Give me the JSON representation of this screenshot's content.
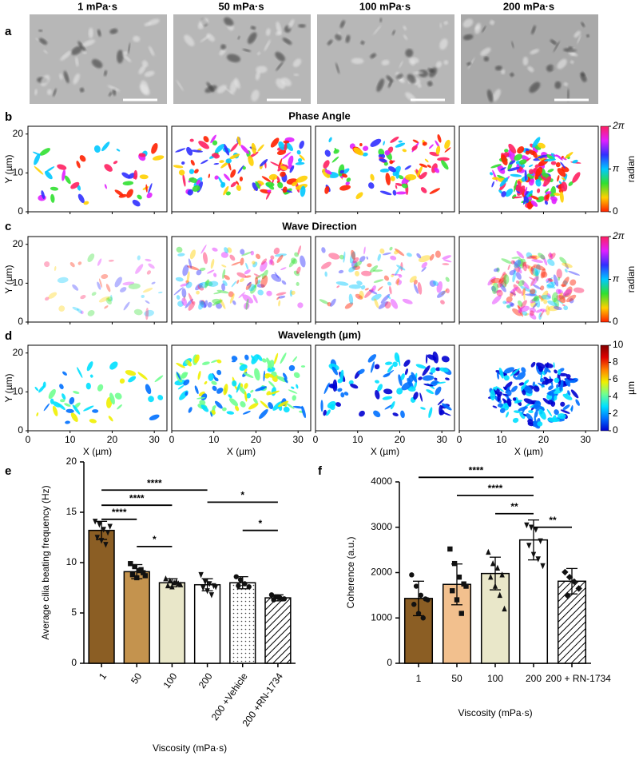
{
  "figure": {
    "column_titles": [
      "1 mPa·s",
      "50 mPa·s",
      "100 mPa·s",
      "200 mPa·s"
    ],
    "panel_labels": [
      "a",
      "b",
      "c",
      "d",
      "e",
      "f"
    ],
    "map_axes": {
      "xlabel": "X (µm)",
      "ylabel": "Y (µm)",
      "xlim": [
        0,
        33
      ],
      "ylim": [
        0,
        22
      ],
      "xticks": [
        0,
        10,
        20,
        30
      ],
      "yticks": [
        0,
        10,
        20
      ]
    },
    "maps": [
      {
        "title": "Phase Angle",
        "colorbar": {
          "lim": [
            0,
            6.2832
          ],
          "ticks": [
            0,
            {
              "value": 3.1416,
              "label": "π"
            },
            {
              "value": 6.2832,
              "label": "2π"
            }
          ],
          "label": "radian",
          "colors": [
            "#ff2000",
            "#ffd000",
            "#30e030",
            "#00c8ff",
            "#3030ff",
            "#e020ff",
            "#ff2060"
          ]
        }
      },
      {
        "title": "Wave Direction",
        "colorbar": {
          "lim": [
            0,
            6.2832
          ],
          "ticks": [
            0,
            {
              "value": 3.1416,
              "label": "π"
            },
            {
              "value": 6.2832,
              "label": "2π"
            }
          ],
          "label": "radian",
          "colors": [
            "#ff2000",
            "#ffd000",
            "#30e030",
            "#00c8ff",
            "#3030ff",
            "#e020ff",
            "#ff2060"
          ]
        }
      },
      {
        "title": "Wavelength (µm)",
        "colorbar": {
          "lim": [
            0,
            10
          ],
          "ticks": [
            0,
            2,
            4,
            6,
            8,
            10
          ],
          "label": "µm",
          "colors": [
            "#0000d0",
            "#0070ff",
            "#00e0ff",
            "#70ff90",
            "#f0f000",
            "#ff8000",
            "#e00000",
            "#800000"
          ]
        }
      }
    ]
  },
  "chart_data": [
    {
      "type": "bar",
      "ylabel": "Average cilia beating frequency (Hz)",
      "xlabel": "Viscosity (mPa·s)",
      "categories": [
        "1",
        "50",
        "100",
        "200",
        "200 +Vehicle",
        "200 +RN-1734"
      ],
      "values": [
        13.2,
        9.1,
        8.0,
        7.8,
        8.0,
        6.5
      ],
      "errors": [
        0.9,
        0.7,
        0.4,
        0.6,
        0.6,
        0.3
      ],
      "points": [
        [
          14.1,
          13.8,
          13.3,
          13.0,
          12.5,
          12.2,
          11.8,
          13.6
        ],
        [
          9.9,
          9.6,
          9.2,
          9.0,
          8.8,
          8.5,
          9.3,
          8.7
        ],
        [
          8.4,
          8.2,
          8.0,
          7.9,
          7.7,
          7.6,
          8.1,
          7.8
        ],
        [
          8.8,
          8.1,
          7.9,
          7.7,
          7.5,
          7.2,
          6.8,
          7.6
        ],
        [
          8.6,
          8.3,
          7.9,
          7.6,
          7.7
        ],
        [
          6.8,
          6.6,
          6.5,
          6.4,
          6.3,
          6.6
        ]
      ],
      "colors": [
        "#8b5e24",
        "#c4934e",
        "#e9e7c9",
        "#ffffff",
        "#ffffff",
        "#ffffff"
      ],
      "fills": [
        "solid",
        "solid",
        "solid",
        "solid",
        "dots",
        "hatch"
      ],
      "markers": [
        "triangle-down",
        "square",
        "triangle",
        "triangle-down",
        "circle",
        "circle"
      ],
      "ylim": [
        0,
        20
      ],
      "yticks": [
        0,
        5,
        10,
        15,
        20
      ],
      "annotations": [
        {
          "text": "****",
          "from": 0,
          "to": 3,
          "y": 17.2
        },
        {
          "text": "****",
          "from": 0,
          "to": 2,
          "y": 15.7
        },
        {
          "text": "****",
          "from": 0,
          "to": 1,
          "y": 14.3
        },
        {
          "text": "*",
          "from": 1,
          "to": 2,
          "y": 11.6
        },
        {
          "text": "*",
          "from": 3,
          "to": 5,
          "y": 16.0
        },
        {
          "text": "*",
          "from": 4,
          "to": 5,
          "y": 13.2
        }
      ]
    },
    {
      "type": "bar",
      "ylabel": "Coherence (a.u.)",
      "xlabel": "Viscosity (mPa·s)",
      "categories": [
        "1",
        "50",
        "100",
        "200",
        "200 + RN-1734"
      ],
      "values": [
        1430,
        1740,
        1980,
        2720,
        1810
      ],
      "errors": [
        380,
        450,
        360,
        440,
        280
      ],
      "points": [
        [
          1950,
          1700,
          1500,
          1420,
          1300,
          1100,
          1000,
          1400
        ],
        [
          2520,
          2200,
          1900,
          1750,
          1600,
          1400,
          1100,
          1700
        ],
        [
          2450,
          2200,
          2100,
          1950,
          1900,
          1700,
          1500,
          1200
        ],
        [
          3050,
          3000,
          2950,
          2700,
          2600,
          2400,
          2300,
          2150
        ],
        [
          2010,
          1900,
          1800,
          1650,
          1500
        ]
      ],
      "colors": [
        "#8b5e24",
        "#f2c08e",
        "#e9e7c9",
        "#ffffff",
        "#ffffff"
      ],
      "fills": [
        "solid",
        "solid",
        "solid",
        "solid",
        "hatch"
      ],
      "markers": [
        "circle",
        "square",
        "triangle",
        "triangle-down",
        "diamond"
      ],
      "ylim": [
        0,
        4000
      ],
      "yticks": [
        0,
        1000,
        2000,
        3000,
        4000
      ],
      "annotations": [
        {
          "text": "****",
          "from": 0,
          "to": 3,
          "y": 4100
        },
        {
          "text": "****",
          "from": 1,
          "to": 3,
          "y": 3700
        },
        {
          "text": "**",
          "from": 2,
          "to": 3,
          "y": 3300
        },
        {
          "text": "**",
          "from": 3,
          "to": 4,
          "y": 3000
        }
      ]
    }
  ]
}
